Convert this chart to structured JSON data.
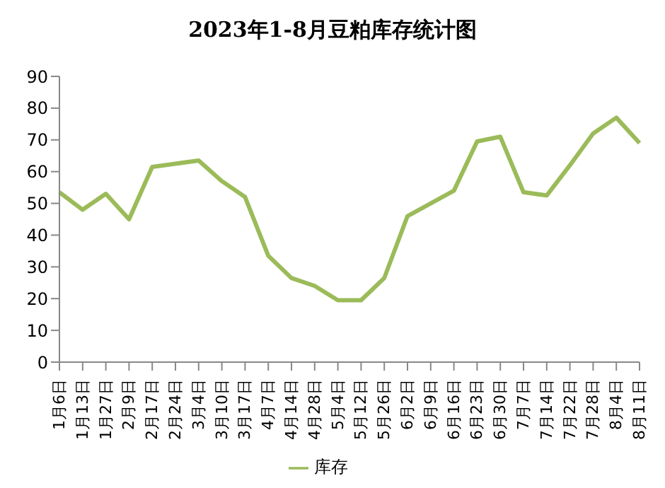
{
  "chart_data": {
    "type": "line",
    "title": "2023年1-8月豆粕库存统计图",
    "categories": [
      "1月6日",
      "1月13日",
      "1月27日",
      "2月9日",
      "2月17日",
      "2月24日",
      "3月4日",
      "3月10日",
      "3月17日",
      "4月7日",
      "4月14日",
      "4月28日",
      "5月4日",
      "5月12日",
      "5月26日",
      "6月2日",
      "6月9日",
      "6月16日",
      "6月23日",
      "6月30日",
      "7月7日",
      "7月14日",
      "7月22日",
      "7月28日",
      "8月4日",
      "8月11日"
    ],
    "series": [
      {
        "name": "库存",
        "color": "#9bbb59",
        "values": [
          53.5,
          48,
          53,
          45,
          61.5,
          62.5,
          63.5,
          57,
          52,
          33.5,
          26.5,
          24,
          19.5,
          19.5,
          26.5,
          46,
          50,
          54,
          69.5,
          71,
          53.5,
          52.5,
          62,
          72,
          77,
          69
        ]
      }
    ],
    "ylim": [
      0,
      90
    ],
    "yticks": [
      0,
      10,
      20,
      30,
      40,
      50,
      60,
      70,
      80,
      90
    ],
    "grid": false,
    "legend": "bottom",
    "marker": "none",
    "line_style": "solid"
  }
}
